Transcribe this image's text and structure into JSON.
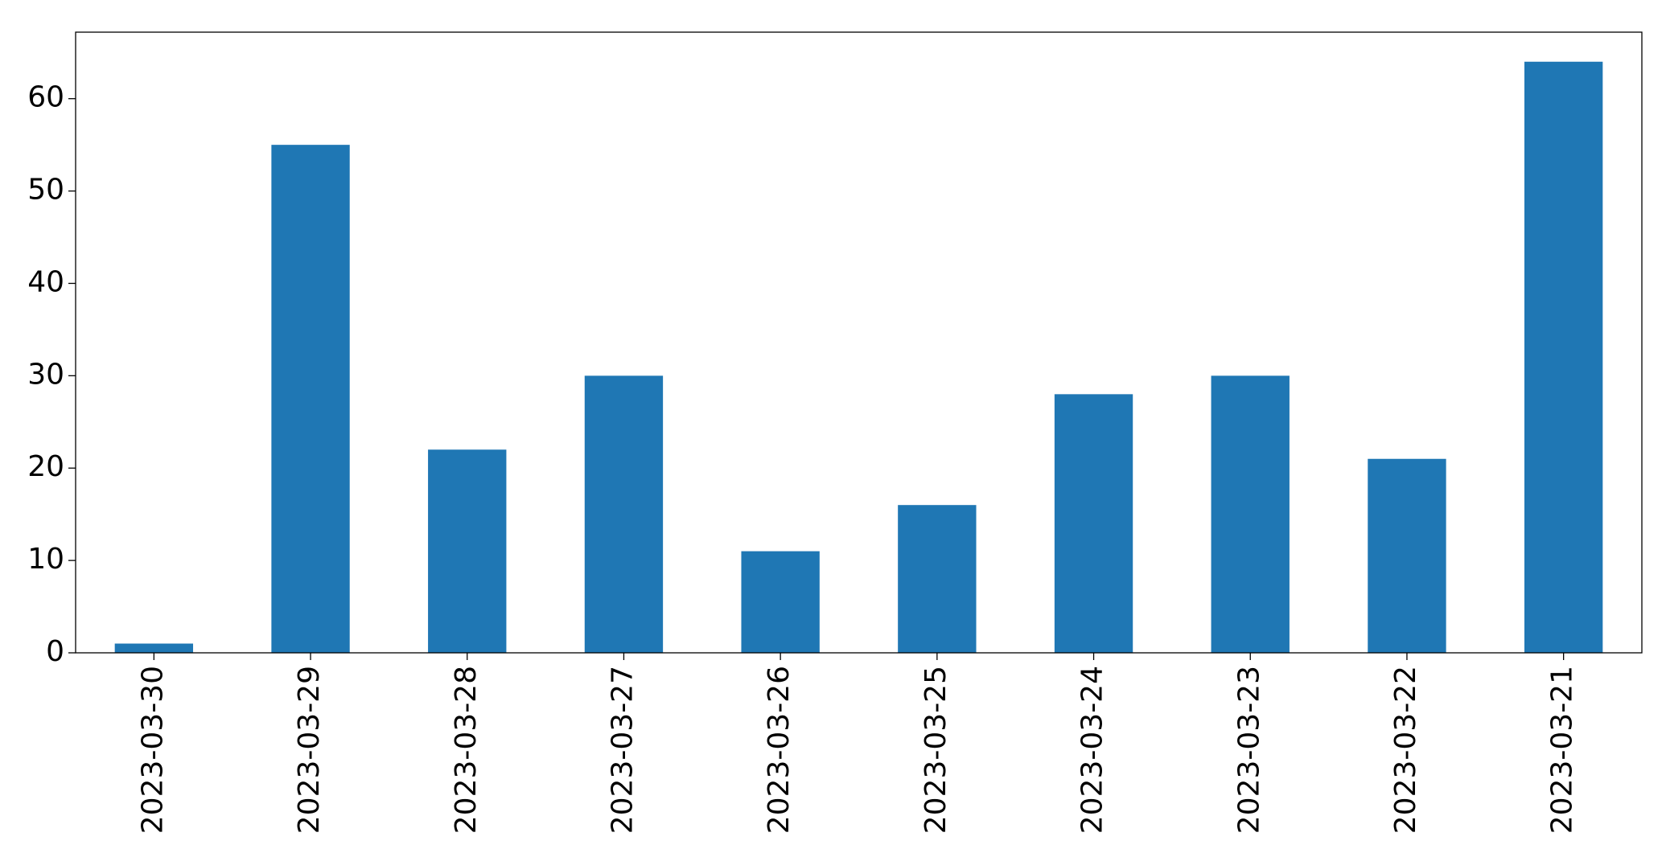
{
  "chart_data": {
    "type": "bar",
    "categories": [
      "2023-03-30",
      "2023-03-29",
      "2023-03-28",
      "2023-03-27",
      "2023-03-26",
      "2023-03-25",
      "2023-03-24",
      "2023-03-23",
      "2023-03-22",
      "2023-03-21"
    ],
    "values": [
      1,
      55,
      22,
      30,
      11,
      16,
      28,
      30,
      21,
      64
    ],
    "color": "#1f77b4",
    "ylim": [
      0,
      67.2
    ],
    "yticks": [
      0,
      10,
      20,
      30,
      40,
      50,
      60
    ],
    "grid": false
  }
}
